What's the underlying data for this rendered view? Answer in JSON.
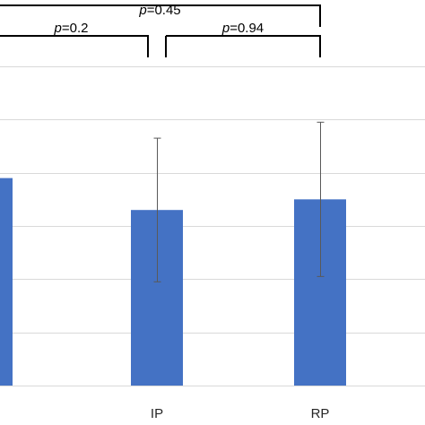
{
  "chart_data": {
    "type": "bar",
    "categories": [
      "",
      "IP",
      "RP"
    ],
    "values": [
      3.9,
      3.3,
      3.5
    ],
    "error": [
      null,
      1.35,
      1.45
    ],
    "ylim": [
      0,
      6
    ],
    "grid": true,
    "colors": {
      "bar": "#4472c4",
      "grid": "#d9d9d9",
      "error": "#595959"
    },
    "annotations": [
      {
        "prefix": "p",
        "value": "=0.45",
        "from": 0,
        "to": 2
      },
      {
        "prefix": "p",
        "value": "=0.2",
        "from": 0,
        "to": 1
      },
      {
        "prefix": "p",
        "value": "=0.94",
        "from": 1,
        "to": 2
      }
    ]
  }
}
